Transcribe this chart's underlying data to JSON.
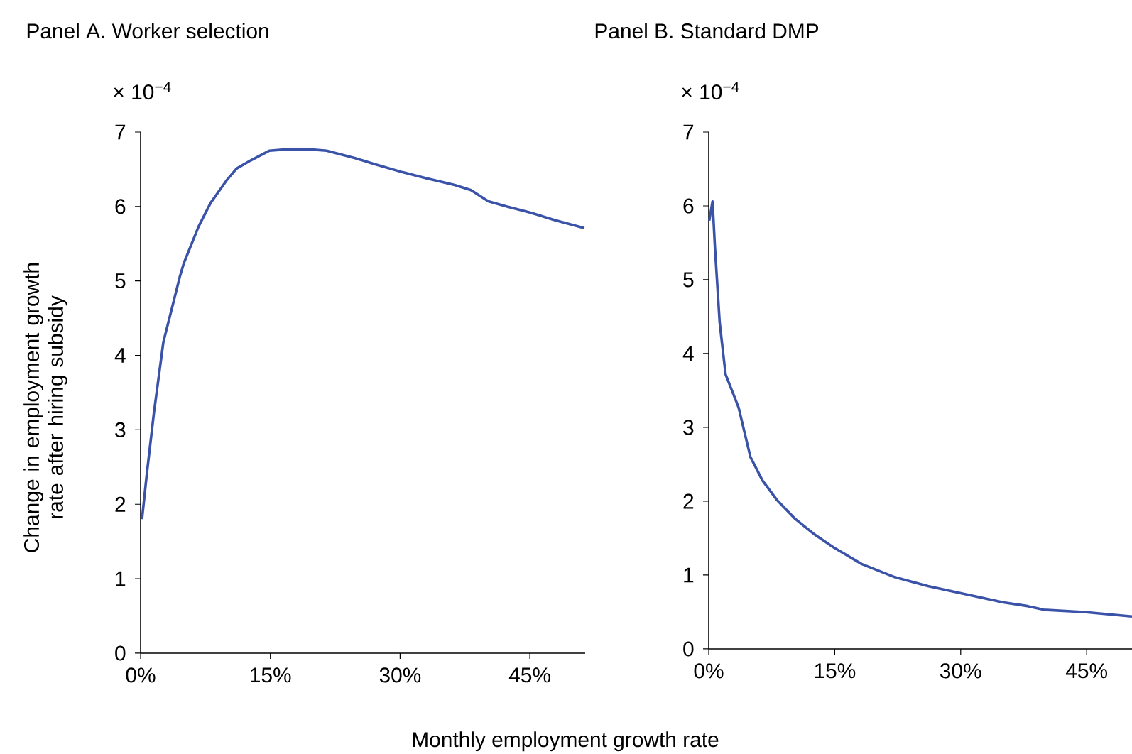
{
  "chart_data": [
    {
      "type": "line",
      "title": "Panel A. Worker selection",
      "xlabel": "Monthly employment growth rate",
      "ylabel": "Change in employment growth rate after hiring subsidy",
      "annotations": [
        "× 10$^{−4}$"
      ],
      "color": "#3a52a8",
      "line_style": "solid",
      "x": [
        0.16,
        0.71,
        1.53,
        2.63,
        3.72,
        4.54,
        5.0,
        6.7,
        8.1,
        10.0,
        11.1,
        12.75,
        14.9,
        17.1,
        19.3,
        21.5,
        24.8,
        27.0,
        30.3,
        33.0,
        36.3,
        38.2,
        40.2,
        42.3,
        45.0,
        47.8,
        51.3
      ],
      "values": [
        1.8,
        2.4,
        3.22,
        4.18,
        4.68,
        5.06,
        5.24,
        5.73,
        6.05,
        6.36,
        6.51,
        6.62,
        6.75,
        6.77,
        6.77,
        6.75,
        6.65,
        6.57,
        6.46,
        6.38,
        6.29,
        6.22,
        6.07,
        6.0,
        5.92,
        5.82,
        5.71
      ],
      "xlim": [
        0,
        51.4
      ],
      "ylim": [
        0,
        7
      ],
      "xticks": [
        {
          "value": 0,
          "label": "0%"
        },
        {
          "value": 15,
          "label": "15%"
        },
        {
          "value": 30,
          "label": "30%"
        },
        {
          "value": 45,
          "label": "45%"
        }
      ],
      "yticks": [
        0,
        1,
        2,
        3,
        4,
        5,
        6,
        7
      ]
    },
    {
      "type": "line",
      "title": "Panel B. Standard DMP",
      "annotations": [
        "× 10$^{−4}$"
      ],
      "color": "#3a52a8",
      "line_style": "solid",
      "x": [
        0.06,
        0.45,
        0.73,
        1.3,
        2.0,
        3.55,
        4.96,
        6.4,
        8.1,
        10.3,
        12.6,
        14.8,
        18.2,
        22.2,
        26.1,
        30.6,
        35.1,
        37.96,
        39.9,
        44.7,
        50.4
      ],
      "values": [
        5.8,
        6.06,
        5.45,
        4.42,
        3.72,
        3.27,
        2.6,
        2.28,
        2.02,
        1.76,
        1.55,
        1.38,
        1.15,
        0.97,
        0.85,
        0.74,
        0.63,
        0.58,
        0.53,
        0.5,
        0.44
      ],
      "xlim": [
        0,
        50.4
      ],
      "ylim": [
        0,
        7
      ],
      "xticks": [
        {
          "value": 0,
          "label": "0%"
        },
        {
          "value": 15,
          "label": "15%"
        },
        {
          "value": 30,
          "label": "30%"
        },
        {
          "value": 45,
          "label": "45%"
        }
      ],
      "yticks": [
        0,
        1,
        2,
        3,
        4,
        5,
        6,
        7
      ]
    }
  ]
}
